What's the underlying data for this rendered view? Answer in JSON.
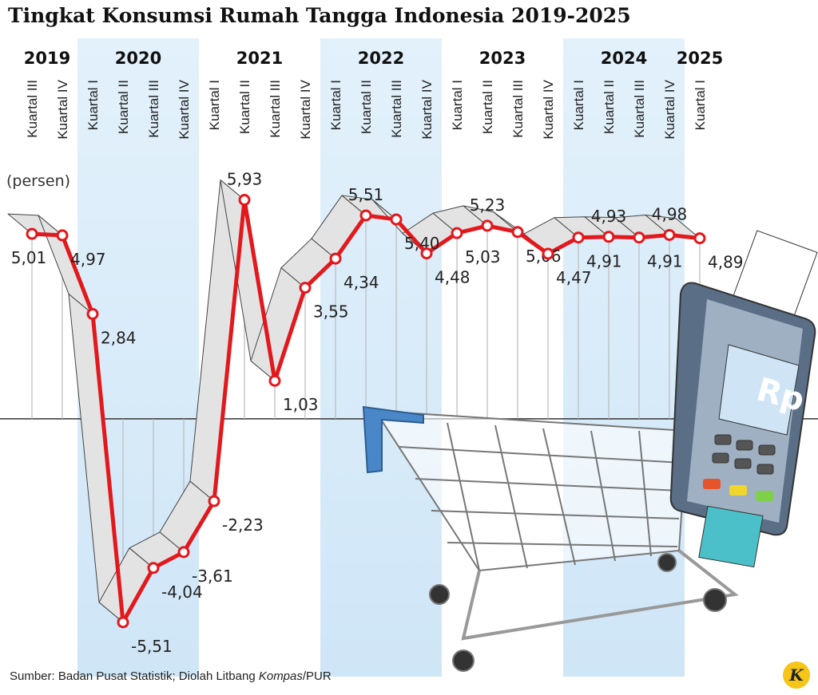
{
  "chart_data": {
    "type": "line",
    "title": "Tingkat Konsumsi Rumah Tangga Indonesia 2019-2025",
    "y_label": "(persen)",
    "years": [
      "2019",
      "2020",
      "2021",
      "2022",
      "2023",
      "2024",
      "2025"
    ],
    "categories": [
      "Kuartal III",
      "Kuartal IV",
      "Kuartal I",
      "Kuartal II",
      "Kuartal III",
      "Kuartal IV",
      "Kuartal I",
      "Kuartal II",
      "Kuartal III",
      "Kuartal IV",
      "Kuartal I",
      "Kuartal II",
      "Kuartal III",
      "Kuartal IV",
      "Kuartal I",
      "Kuartal II",
      "Kuartal III",
      "Kuartal IV",
      "Kuartal I",
      "Kuartal II",
      "Kuartal III",
      "Kuartal IV",
      "Kuartal I"
    ],
    "series": [
      {
        "name": "Konsumsi Rumah Tangga",
        "color": "#e3181d",
        "values": [
          5.01,
          4.97,
          2.84,
          -5.51,
          -4.04,
          -3.61,
          -2.23,
          5.93,
          1.03,
          3.55,
          4.34,
          5.51,
          5.4,
          4.48,
          5.03,
          5.23,
          5.06,
          4.47,
          4.91,
          4.93,
          4.91,
          4.98,
          4.89
        ],
        "value_labels": [
          "5,01",
          "4,97",
          "2,84",
          "-5,51",
          "-4,04",
          "-3,61",
          "-2,23",
          "5,93",
          "1,03",
          "3,55",
          "4,34",
          "5,51",
          "5,40",
          "4,48",
          "5,03",
          "5,23",
          "5,06",
          "4,47",
          "4,91",
          "4,93",
          "4,91",
          "4,98",
          "4,89"
        ]
      }
    ],
    "ylim": [
      -6.4,
      7
    ],
    "source": "Sumber: Badan Pusat Statistik; Diolah Litbang ",
    "source_italic": "Kompas",
    "source_end": "/PUR",
    "logo": "K"
  }
}
